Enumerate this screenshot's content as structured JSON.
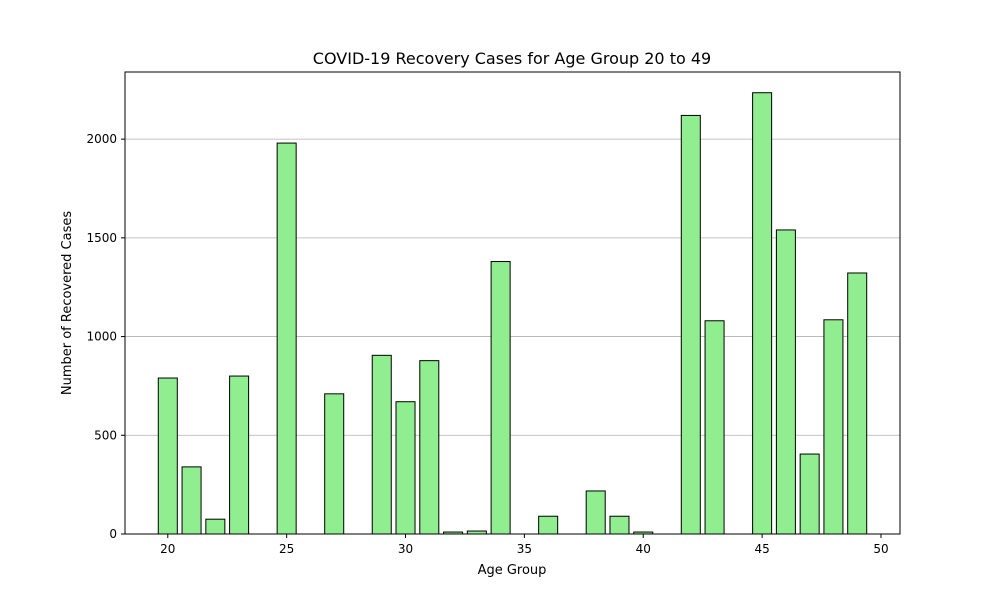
{
  "chart_data": {
    "type": "bar",
    "title": "COVID-19 Recovery Cases for Age Group 20 to 49",
    "xlabel": "Age Group",
    "ylabel": "Number of Recovered Cases",
    "xlim": [
      18.2,
      50.8
    ],
    "ylim": [
      0,
      2340
    ],
    "x_ticks": [
      20,
      25,
      30,
      35,
      40,
      45,
      50
    ],
    "y_ticks": [
      0,
      500,
      1000,
      1500,
      2000
    ],
    "grid": "y",
    "bar_color": "#90ee90",
    "edge_color": "#000000",
    "x": [
      20,
      21,
      22,
      23,
      25,
      27,
      29,
      30,
      31,
      32,
      33,
      34,
      36,
      38,
      39,
      40,
      42,
      43,
      45,
      46,
      47,
      48,
      49
    ],
    "values": [
      790,
      340,
      75,
      800,
      1980,
      710,
      905,
      670,
      878,
      10,
      15,
      1380,
      90,
      218,
      90,
      10,
      2120,
      1080,
      2235,
      1540,
      405,
      1085,
      1322
    ]
  }
}
